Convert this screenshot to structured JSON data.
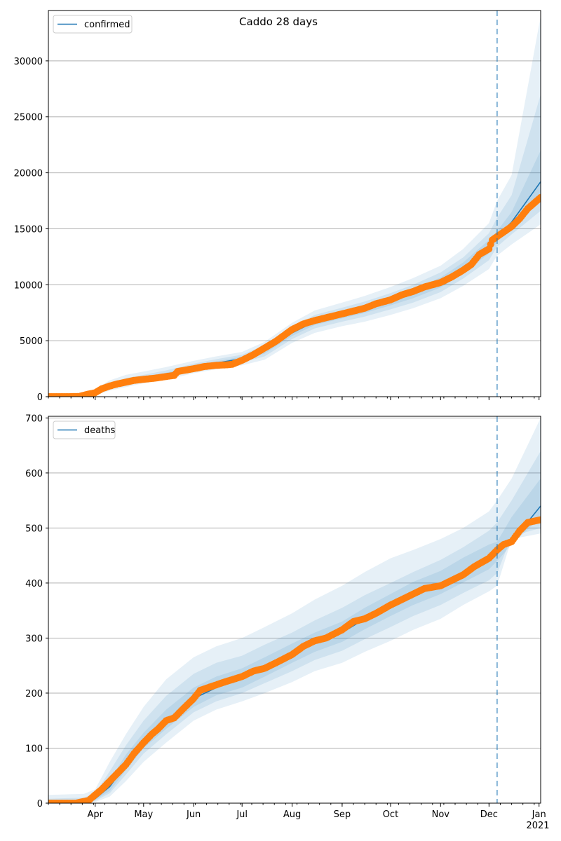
{
  "title": "Caddo 28 days",
  "x_axis": {
    "tick_labels": [
      "Apr",
      "May",
      "Jun",
      "Jul",
      "Aug",
      "Sep",
      "Oct",
      "Nov",
      "Dec",
      "Jan"
    ],
    "tick_dates": [
      "2020-04-01",
      "2020-05-01",
      "2020-06-01",
      "2020-07-01",
      "2020-08-01",
      "2020-09-01",
      "2020-10-01",
      "2020-11-01",
      "2020-12-01",
      "2021-01-01"
    ],
    "year_label": "2021",
    "range": [
      "2020-03-03",
      "2021-01-02"
    ]
  },
  "colors": {
    "model_line": "#1f77b4",
    "observed": "#ff7f0e",
    "band": "#1f77b4",
    "grid": "#b0b0b0",
    "vline": "#1f77b4"
  },
  "chart_data": [
    {
      "type": "line",
      "panel": "top",
      "legend": [
        "confirmed"
      ],
      "legend_position": "top-left",
      "grid": "horizontal",
      "ylim": [
        0,
        34500
      ],
      "yticks": [
        0,
        5000,
        10000,
        15000,
        20000,
        25000,
        30000
      ],
      "forecast_start": "2020-12-06",
      "model": {
        "x": [
          "2020-03-03",
          "2020-03-20",
          "2020-03-31",
          "2020-04-10",
          "2020-04-20",
          "2020-05-01",
          "2020-05-15",
          "2020-06-01",
          "2020-06-15",
          "2020-07-01",
          "2020-07-15",
          "2020-08-01",
          "2020-08-15",
          "2020-09-01",
          "2020-09-15",
          "2020-10-01",
          "2020-10-15",
          "2020-11-01",
          "2020-11-15",
          "2020-12-01",
          "2020-12-06",
          "2020-12-15",
          "2021-01-02"
        ],
        "y": [
          0,
          20,
          300,
          900,
          1300,
          1600,
          2000,
          2600,
          3000,
          3400,
          4100,
          5700,
          6700,
          7300,
          7800,
          8500,
          9200,
          10200,
          11500,
          13400,
          14300,
          15600,
          19200
        ]
      },
      "bands": [
        {
          "level": "outer",
          "lower": [
            0,
            0,
            60,
            550,
            850,
            1200,
            1500,
            2100,
            2450,
            2800,
            3300,
            4800,
            5700,
            6300,
            6700,
            7300,
            7900,
            8800,
            9900,
            11400,
            12600,
            13600,
            15400
          ],
          "upper": [
            100,
            150,
            600,
            1450,
            1950,
            2250,
            2650,
            3200,
            3600,
            4000,
            4900,
            6600,
            7700,
            8400,
            9000,
            9800,
            10600,
            11700,
            13200,
            15500,
            17500,
            19800,
            34000
          ]
        },
        {
          "level": "middle",
          "lower": [
            0,
            5,
            150,
            700,
            1050,
            1350,
            1700,
            2300,
            2700,
            3050,
            3600,
            5150,
            6100,
            6700,
            7150,
            7800,
            8400,
            9350,
            10550,
            12200,
            13400,
            14500,
            16600
          ],
          "upper": [
            60,
            100,
            470,
            1200,
            1650,
            1950,
            2350,
            2950,
            3350,
            3750,
            4600,
            6250,
            7300,
            7950,
            8500,
            9250,
            10000,
            11100,
            12450,
            14600,
            16000,
            18000,
            27000
          ]
        },
        {
          "level": "inner",
          "lower": [
            0,
            10,
            230,
            800,
            1180,
            1480,
            1850,
            2450,
            2850,
            3220,
            3850,
            5420,
            6400,
            7000,
            7480,
            8150,
            8800,
            9750,
            11000,
            12800,
            13900,
            15100,
            17900
          ],
          "upper": [
            30,
            60,
            380,
            1030,
            1440,
            1740,
            2150,
            2750,
            3150,
            3580,
            4350,
            5950,
            7000,
            7600,
            8130,
            8850,
            9600,
            10650,
            11990,
            14000,
            14800,
            16500,
            22000
          ]
        }
      ],
      "observed": {
        "x": [
          "2020-03-03",
          "2020-03-15",
          "2020-03-22",
          "2020-03-27",
          "2020-04-01",
          "2020-04-05",
          "2020-04-10",
          "2020-04-15",
          "2020-04-20",
          "2020-04-25",
          "2020-05-01",
          "2020-05-08",
          "2020-05-15",
          "2020-05-20",
          "2020-05-22",
          "2020-06-01",
          "2020-06-08",
          "2020-06-15",
          "2020-06-22",
          "2020-06-25",
          "2020-07-01",
          "2020-07-08",
          "2020-07-15",
          "2020-07-22",
          "2020-08-01",
          "2020-08-08",
          "2020-08-15",
          "2020-08-22",
          "2020-09-01",
          "2020-09-08",
          "2020-09-15",
          "2020-09-22",
          "2020-10-01",
          "2020-10-08",
          "2020-10-15",
          "2020-10-22",
          "2020-11-01",
          "2020-11-08",
          "2020-11-15",
          "2020-11-20",
          "2020-11-25",
          "2020-12-01",
          "2020-12-03",
          "2020-12-06",
          "2020-12-10",
          "2020-12-15",
          "2020-12-20",
          "2020-12-25",
          "2021-01-02"
        ],
        "y": [
          0,
          0,
          20,
          200,
          350,
          700,
          950,
          1150,
          1300,
          1450,
          1550,
          1650,
          1800,
          1900,
          2250,
          2500,
          2700,
          2800,
          2850,
          2900,
          3250,
          3750,
          4350,
          4950,
          6000,
          6500,
          6800,
          7050,
          7400,
          7650,
          7900,
          8300,
          8650,
          9100,
          9400,
          9800,
          10200,
          10700,
          11300,
          11800,
          12700,
          13200,
          14000,
          14300,
          14700,
          15200,
          15900,
          16800,
          17800
        ]
      }
    },
    {
      "type": "line",
      "panel": "bottom",
      "legend": [
        "deaths"
      ],
      "legend_position": "top-left",
      "grid": "horizontal",
      "ylim": [
        0,
        703
      ],
      "yticks": [
        0,
        100,
        200,
        300,
        400,
        500,
        600,
        700
      ],
      "forecast_start": "2020-12-06",
      "model": {
        "x": [
          "2020-03-03",
          "2020-03-25",
          "2020-04-01",
          "2020-04-10",
          "2020-04-20",
          "2020-05-01",
          "2020-05-15",
          "2020-06-01",
          "2020-06-15",
          "2020-07-01",
          "2020-07-15",
          "2020-08-01",
          "2020-08-15",
          "2020-09-01",
          "2020-09-15",
          "2020-10-01",
          "2020-10-15",
          "2020-11-01",
          "2020-11-15",
          "2020-12-01",
          "2020-12-06",
          "2020-12-15",
          "2021-01-02"
        ],
        "y": [
          0,
          2,
          8,
          30,
          70,
          110,
          150,
          190,
          210,
          225,
          245,
          270,
          290,
          310,
          335,
          360,
          380,
          400,
          420,
          445,
          455,
          475,
          540
        ]
      },
      "bands": [
        {
          "level": "outer",
          "lower": [
            0,
            0,
            2,
            12,
            40,
            75,
            110,
            150,
            170,
            185,
            200,
            220,
            240,
            255,
            275,
            295,
            315,
            335,
            360,
            385,
            395,
            480,
            490
          ],
          "upper": [
            15,
            17,
            25,
            75,
            125,
            175,
            225,
            265,
            285,
            300,
            320,
            345,
            370,
            395,
            420,
            445,
            460,
            480,
            500,
            530,
            550,
            590,
            700
          ]
        },
        {
          "level": "middle",
          "lower": [
            0,
            0,
            4,
            18,
            52,
            90,
            125,
            165,
            185,
            200,
            218,
            240,
            260,
            277,
            298,
            320,
            340,
            360,
            382,
            405,
            418,
            485,
            500
          ],
          "upper": [
            8,
            10,
            18,
            58,
            105,
            150,
            195,
            235,
            255,
            268,
            288,
            310,
            332,
            355,
            378,
            400,
            420,
            442,
            465,
            495,
            510,
            550,
            640
          ]
        },
        {
          "level": "inner",
          "lower": [
            0,
            1,
            6,
            22,
            60,
            100,
            135,
            175,
            196,
            210,
            230,
            255,
            275,
            293,
            316,
            340,
            360,
            380,
            401,
            425,
            440,
            470,
            520
          ],
          "upper": [
            4,
            6,
            12,
            42,
            88,
            128,
            170,
            210,
            230,
            245,
            265,
            290,
            310,
            330,
            355,
            380,
            402,
            422,
            446,
            470,
            475,
            520,
            590
          ]
        }
      ],
      "observed": {
        "x": [
          "2020-03-03",
          "2020-03-20",
          "2020-03-28",
          "2020-04-01",
          "2020-04-05",
          "2020-04-10",
          "2020-04-15",
          "2020-04-20",
          "2020-04-25",
          "2020-05-01",
          "2020-05-06",
          "2020-05-10",
          "2020-05-15",
          "2020-05-20",
          "2020-05-25",
          "2020-06-01",
          "2020-06-05",
          "2020-06-10",
          "2020-06-20",
          "2020-07-01",
          "2020-07-08",
          "2020-07-15",
          "2020-07-22",
          "2020-08-01",
          "2020-08-08",
          "2020-08-15",
          "2020-08-22",
          "2020-09-01",
          "2020-09-08",
          "2020-09-15",
          "2020-09-22",
          "2020-10-01",
          "2020-10-08",
          "2020-10-15",
          "2020-10-22",
          "2020-11-01",
          "2020-11-08",
          "2020-11-15",
          "2020-11-22",
          "2020-12-01",
          "2020-12-06",
          "2020-12-10",
          "2020-12-15",
          "2020-12-20",
          "2020-12-25",
          "2021-01-02"
        ],
        "y": [
          0,
          0,
          5,
          15,
          25,
          40,
          55,
          70,
          90,
          110,
          125,
          135,
          150,
          155,
          170,
          190,
          205,
          210,
          220,
          230,
          240,
          245,
          255,
          270,
          285,
          295,
          300,
          315,
          330,
          335,
          345,
          360,
          370,
          380,
          390,
          395,
          405,
          415,
          430,
          445,
          460,
          470,
          475,
          495,
          510,
          515
        ]
      }
    }
  ]
}
